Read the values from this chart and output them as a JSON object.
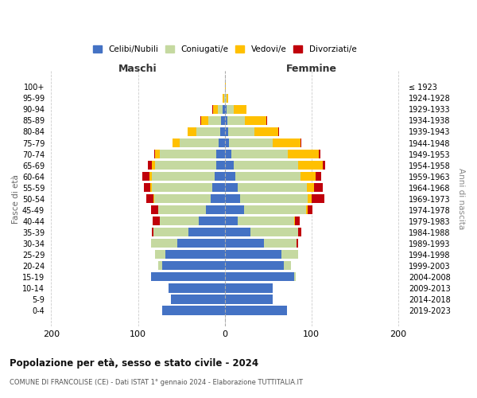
{
  "age_groups": [
    "0-4",
    "5-9",
    "10-14",
    "15-19",
    "20-24",
    "25-29",
    "30-34",
    "35-39",
    "40-44",
    "45-49",
    "50-54",
    "55-59",
    "60-64",
    "65-69",
    "70-74",
    "75-79",
    "80-84",
    "85-89",
    "90-94",
    "95-99",
    "100+"
  ],
  "birth_years": [
    "2019-2023",
    "2014-2018",
    "2009-2013",
    "2004-2008",
    "1999-2003",
    "1994-1998",
    "1989-1993",
    "1984-1988",
    "1979-1983",
    "1974-1978",
    "1969-1973",
    "1964-1968",
    "1959-1963",
    "1954-1958",
    "1949-1953",
    "1944-1948",
    "1939-1943",
    "1934-1938",
    "1929-1933",
    "1924-1928",
    "≤ 1923"
  ],
  "maschi": {
    "celibi": [
      72,
      62,
      65,
      85,
      72,
      68,
      55,
      42,
      30,
      22,
      16,
      14,
      12,
      10,
      10,
      7,
      5,
      4,
      2,
      0,
      0
    ],
    "coniugati": [
      0,
      0,
      0,
      0,
      5,
      12,
      30,
      40,
      45,
      55,
      65,
      70,
      72,
      70,
      65,
      45,
      28,
      15,
      6,
      1,
      0
    ],
    "vedovi": [
      0,
      0,
      0,
      0,
      0,
      0,
      0,
      0,
      0,
      0,
      1,
      2,
      3,
      4,
      5,
      8,
      10,
      8,
      5,
      1,
      0
    ],
    "divorziati": [
      0,
      0,
      0,
      0,
      0,
      0,
      0,
      2,
      8,
      8,
      8,
      7,
      8,
      5,
      1,
      0,
      0,
      1,
      1,
      0,
      0
    ]
  },
  "femmine": {
    "nubili": [
      72,
      55,
      55,
      80,
      68,
      65,
      45,
      30,
      15,
      22,
      18,
      15,
      12,
      10,
      8,
      5,
      4,
      3,
      2,
      0,
      0
    ],
    "coniugate": [
      0,
      0,
      0,
      2,
      8,
      20,
      38,
      55,
      65,
      72,
      78,
      80,
      75,
      75,
      65,
      50,
      30,
      20,
      8,
      2,
      0
    ],
    "vedove": [
      0,
      0,
      0,
      0,
      0,
      0,
      0,
      0,
      1,
      2,
      4,
      8,
      18,
      28,
      35,
      32,
      28,
      25,
      15,
      2,
      1
    ],
    "divorziate": [
      0,
      0,
      0,
      0,
      0,
      0,
      2,
      3,
      5,
      5,
      15,
      10,
      6,
      3,
      2,
      1,
      1,
      1,
      0,
      0,
      0
    ]
  },
  "colors": {
    "celibi": "#4472c4",
    "coniugati": "#c5d9a0",
    "vedovi": "#ffc000",
    "divorziati": "#c0000b"
  },
  "xlim": [
    -205,
    205
  ],
  "xticks": [
    -200,
    -100,
    0,
    100,
    200
  ],
  "xtick_labels": [
    "200",
    "100",
    "0",
    "100",
    "200"
  ],
  "title": "Popolazione per età, sesso e stato civile - 2024",
  "subtitle": "COMUNE DI FRANCOLISE (CE) - Dati ISTAT 1° gennaio 2024 - Elaborazione TUTTITALIA.IT",
  "ylabel": "Fasce di età",
  "ylabel_right": "Anni di nascita",
  "maschi_label": "Maschi",
  "femmine_label": "Femmine",
  "legend_labels": [
    "Celibi/Nubili",
    "Coniugati/e",
    "Vedovi/e",
    "Divorziati/e"
  ],
  "background_color": "#ffffff",
  "grid_color": "#cccccc"
}
